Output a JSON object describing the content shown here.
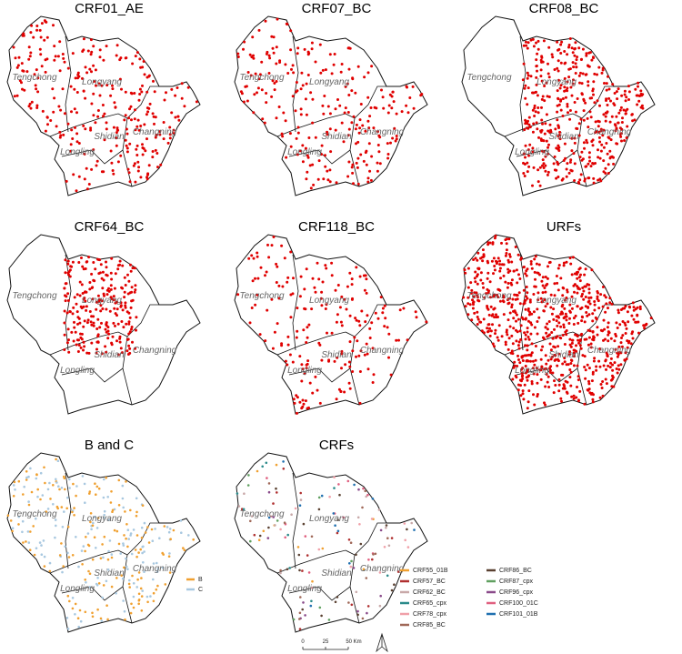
{
  "panels": [
    {
      "title": "CRF01_AE"
    },
    {
      "title": "CRF07_BC"
    },
    {
      "title": "CRF08_BC"
    },
    {
      "title": "CRF64_BC"
    },
    {
      "title": "CRF118_BC"
    },
    {
      "title": "URFs"
    },
    {
      "title": "B and C"
    },
    {
      "title": "CRFs"
    }
  ],
  "districts": [
    "Tengchong",
    "Longyang",
    "Shidian",
    "Changning",
    "Longling"
  ],
  "legend_bc": [
    {
      "label": "B",
      "color": "#f0a030"
    },
    {
      "label": "C",
      "color": "#a8c8e0"
    }
  ],
  "legend_crfs": [
    {
      "label": "CRF55_01B",
      "color": "#f0a030"
    },
    {
      "label": "CRF57_BC",
      "color": "#b03030"
    },
    {
      "label": "CRF62_BC",
      "color": "#c8a8a8"
    },
    {
      "label": "CRF65_cpx",
      "color": "#2a8a8a"
    },
    {
      "label": "CRF78_cpx",
      "color": "#f0a0a8"
    },
    {
      "label": "CRF85_BC",
      "color": "#a06858"
    },
    {
      "label": "CRF86_BC",
      "color": "#5a4030"
    },
    {
      "label": "CRF87_cpx",
      "color": "#60a060"
    },
    {
      "label": "CRF96_cpx",
      "color": "#8a4a8a"
    },
    {
      "label": "CRF100_01C",
      "color": "#e06080"
    },
    {
      "label": "CRF101_01B",
      "color": "#2070b0"
    }
  ],
  "scale_bar": {
    "labels": [
      "0",
      "25",
      "50 Km"
    ]
  }
}
